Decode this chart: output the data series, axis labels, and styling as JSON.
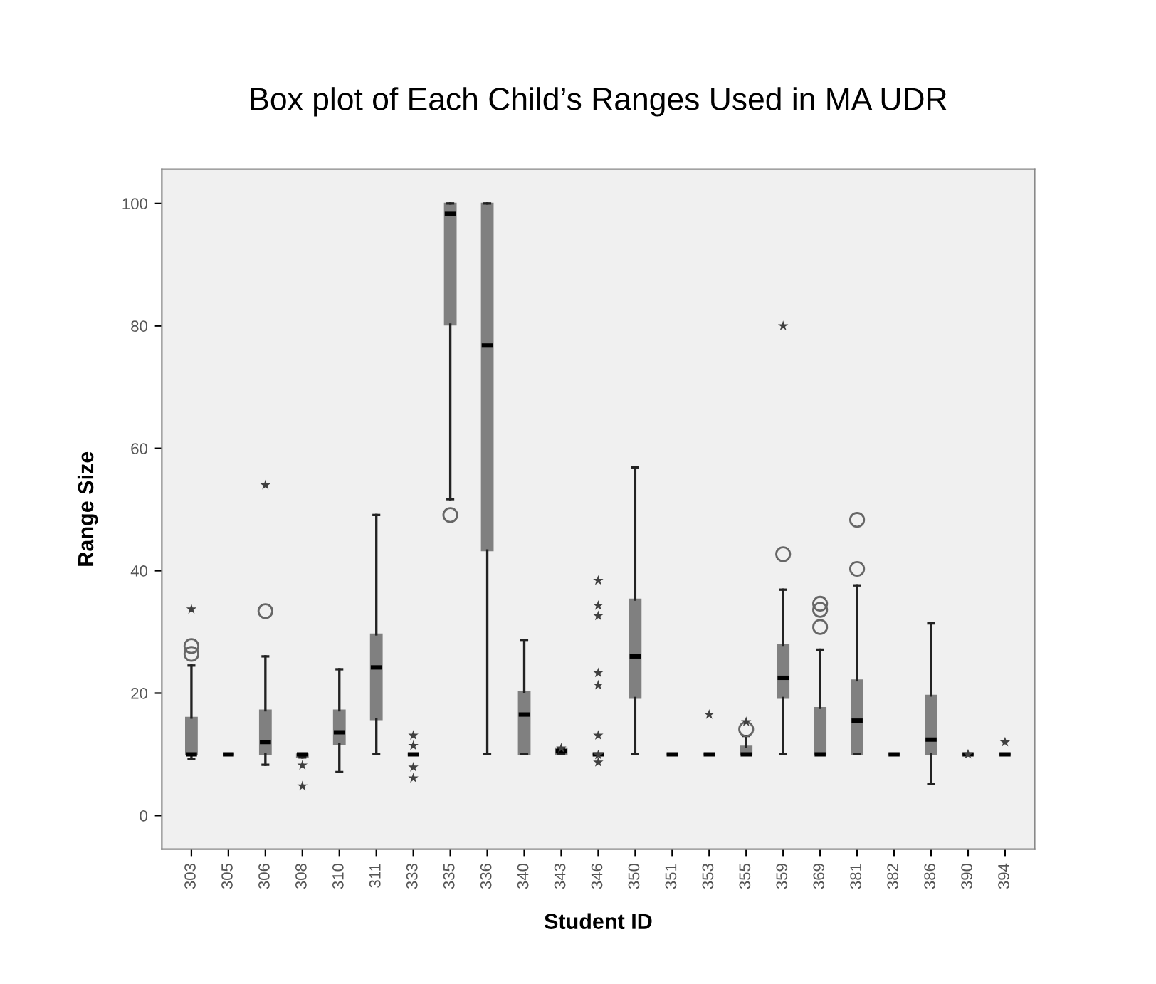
{
  "chart_data": {
    "type": "box",
    "title": "Box plot of Each Child’s Ranges Used in MA UDR",
    "xlabel": "Student ID",
    "ylabel": "Range Size",
    "categories": [
      "303",
      "305",
      "306",
      "308",
      "310",
      "311",
      "333",
      "335",
      "336",
      "340",
      "343",
      "346",
      "350",
      "351",
      "353",
      "355",
      "359",
      "369",
      "381",
      "382",
      "386",
      "390",
      "394"
    ],
    "ylim": [
      -5.5,
      105.6
    ],
    "yticks": [
      0,
      20,
      40,
      60,
      80,
      100
    ],
    "grid": false,
    "legend": false,
    "series": [
      {
        "color": "#808080",
        "boxes": [
          {
            "low": 9.2,
            "q1": 10,
            "median": 10,
            "q3": 16,
            "high": 24.5,
            "outliers": [
              27.7,
              26.4
            ]
          },
          {
            "low": 10,
            "q1": 10,
            "median": 10,
            "q3": 10,
            "high": 10
          },
          {
            "low": 8.3,
            "q1": 10,
            "median": 12,
            "q3": 17.2,
            "high": 26,
            "outliers": [
              33.4
            ]
          },
          {
            "low": 9.5,
            "q1": 9.5,
            "median": 10,
            "q3": 10,
            "high": 10
          },
          {
            "low": 7.1,
            "q1": 11.7,
            "median": 13.6,
            "q3": 17.2,
            "high": 23.9
          },
          {
            "low": 10,
            "q1": 15.7,
            "median": 24.2,
            "q3": 29.6,
            "high": 49.1
          },
          {
            "low": 10,
            "q1": 10,
            "median": 10,
            "q3": 10,
            "high": 10
          },
          {
            "low": 51.7,
            "q1": 80.2,
            "median": 98.3,
            "q3": 100,
            "high": 100,
            "outliers": [
              49.1
            ]
          },
          {
            "low": 10,
            "q1": 43.3,
            "median": 76.8,
            "q3": 100,
            "high": 100
          },
          {
            "low": 10,
            "q1": 10,
            "median": 16.5,
            "q3": 20.2,
            "high": 28.7
          },
          {
            "low": 10,
            "q1": 10,
            "median": 10.5,
            "q3": 11,
            "high": 11
          },
          {
            "low": 10,
            "q1": 10,
            "median": 10,
            "q3": 10,
            "high": 10
          },
          {
            "low": 10,
            "q1": 19.2,
            "median": 26,
            "q3": 35.3,
            "high": 56.9
          },
          {
            "low": 10,
            "q1": 10,
            "median": 10,
            "q3": 10,
            "high": 10
          },
          {
            "low": 10,
            "q1": 10,
            "median": 10,
            "q3": 10,
            "high": 10
          },
          {
            "low": 10,
            "q1": 10,
            "median": 10,
            "q3": 11.3,
            "high": 13,
            "outliers": [
              14.1
            ]
          },
          {
            "low": 10,
            "q1": 19.2,
            "median": 22.5,
            "q3": 27.9,
            "high": 36.9,
            "outliers": [
              42.7
            ]
          },
          {
            "low": 10,
            "q1": 10,
            "median": 10,
            "q3": 17.6,
            "high": 27.1,
            "outliers": [
              34.6,
              33.6,
              30.8
            ]
          },
          {
            "low": 10,
            "q1": 10,
            "median": 15.5,
            "q3": 22.1,
            "high": 37.6,
            "outliers": [
              40.3,
              48.3
            ]
          },
          {
            "low": 10,
            "q1": 10,
            "median": 10,
            "q3": 10,
            "high": 10
          },
          {
            "low": 5.2,
            "q1": 10,
            "median": 12.4,
            "q3": 19.6,
            "high": 31.4
          },
          {
            "low": 10,
            "q1": 10,
            "median": 10,
            "q3": 10,
            "high": 10
          },
          {
            "low": 10,
            "q1": 10,
            "median": 10,
            "q3": 10,
            "high": 10
          }
        ]
      },
      {
        "type": "scatter",
        "marker": "star",
        "color": "#404040",
        "x": [
          "303",
          "306",
          "308",
          "308",
          "333",
          "333",
          "333",
          "333",
          "343",
          "346",
          "346",
          "346",
          "346",
          "346",
          "346",
          "346",
          "346",
          "353",
          "355",
          "359",
          "390",
          "394"
        ],
        "values": [
          33.7,
          54,
          8.2,
          4.8,
          13.1,
          11.4,
          7.9,
          6.1,
          11,
          38.4,
          34.3,
          32.6,
          23.3,
          21.3,
          13.1,
          9.9,
          8.7,
          16.5,
          15.3,
          80,
          10,
          12
        ]
      }
    ]
  }
}
